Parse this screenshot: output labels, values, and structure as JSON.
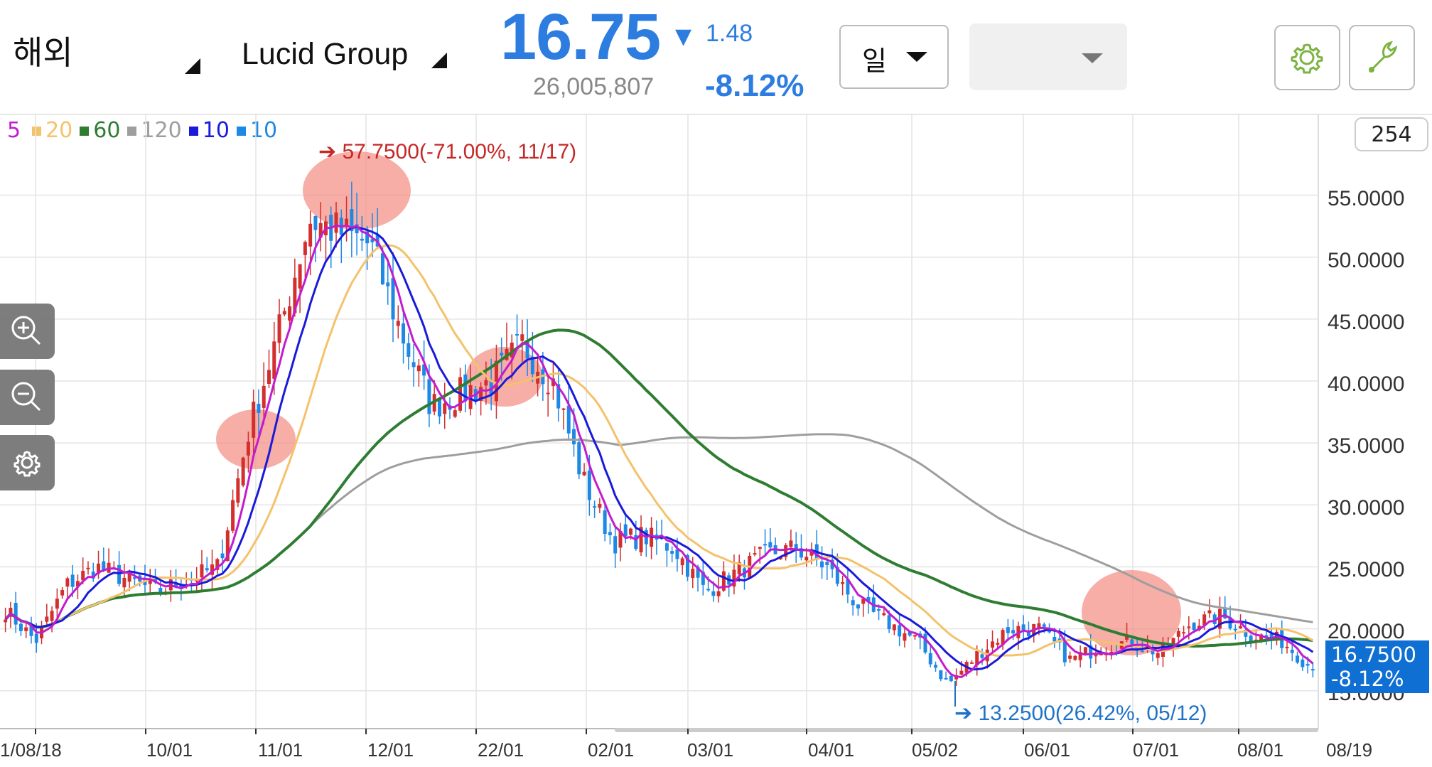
{
  "header": {
    "market": "해외",
    "stock_name": "Lucid Group",
    "price": "16.75",
    "change_arrow": "▼",
    "change": "1.48",
    "volume": "26,005,807",
    "change_pct": "-8.12%",
    "period": "일",
    "bar_count": "254"
  },
  "legend": [
    {
      "label": "5",
      "color": "#c21ccf"
    },
    {
      "label": "20",
      "color": "#f4c26b"
    },
    {
      "label": "60",
      "color": "#2e7d32"
    },
    {
      "label": "120",
      "color": "#9e9e9e"
    },
    {
      "label": "10",
      "color": "#1a1adb"
    },
    {
      "label": "10",
      "color": "#1e88e5"
    }
  ],
  "annotations": {
    "high": "57.7500(-71.00%, 11/17)",
    "low": "13.2500(26.42%, 05/12)",
    "current_price": "16.7500",
    "current_pct": "-8.12%"
  },
  "colors": {
    "up": "#d32f2f",
    "down": "#1e88e5",
    "accent": "#2d7de0",
    "highlight": "#f28b82"
  },
  "icons": [
    "zoom-in-icon",
    "zoom-out-icon",
    "gear-icon",
    "wrench-icon"
  ],
  "chart_data": {
    "type": "candlestick",
    "x_ticks": [
      "1/08/18",
      "10/01",
      "11/01",
      "12/01",
      "22/01",
      "02/01",
      "03/01",
      "04/01",
      "05/02",
      "06/01",
      "07/01",
      "08/01",
      "08/19"
    ],
    "y_ticks": [
      "55.0000",
      "50.0000",
      "45.0000",
      "40.0000",
      "35.0000",
      "30.0000",
      "25.0000",
      "20.0000",
      "15.0000"
    ],
    "ylim": [
      13,
      60
    ],
    "close_path": [
      [
        "1/08/18",
        21.5
      ],
      [
        "",
        19.0
      ],
      [
        "",
        23.5
      ],
      [
        "",
        25.0
      ],
      [
        "10/01",
        24.0
      ],
      [
        "",
        23.0
      ],
      [
        "",
        24.0
      ],
      [
        "",
        25.0
      ],
      [
        "11/01",
        36.0
      ],
      [
        "",
        44.0
      ],
      [
        "",
        53.0
      ],
      [
        "",
        52.0
      ],
      [
        "12/01",
        51.0
      ],
      [
        "",
        44.0
      ],
      [
        "",
        38.0
      ],
      [
        "",
        39.0
      ],
      [
        "22/01",
        40.0
      ],
      [
        "",
        43.0
      ],
      [
        "",
        40.0
      ],
      [
        "",
        32.0
      ],
      [
        "02/01",
        27.0
      ],
      [
        "",
        27.5
      ],
      [
        "",
        26.5
      ],
      [
        "",
        23.0
      ],
      [
        "03/01",
        24.5
      ],
      [
        "",
        26.0
      ],
      [
        "",
        26.5
      ],
      [
        "",
        25.0
      ],
      [
        "04/01",
        22.0
      ],
      [
        "",
        20.5
      ],
      [
        "",
        19.0
      ],
      [
        "05/02",
        15.5
      ],
      [
        "",
        18.0
      ],
      [
        "",
        20.0
      ],
      [
        "",
        20.0
      ],
      [
        "06/01",
        17.5
      ],
      [
        "",
        18.5
      ],
      [
        "",
        19.0
      ],
      [
        "07/01",
        18.0
      ],
      [
        "",
        20.5
      ],
      [
        "",
        21.0
      ],
      [
        "08/01",
        19.5
      ],
      [
        "",
        19.0
      ],
      [
        "08/19",
        16.75
      ]
    ],
    "high": 57.75,
    "low": 13.25,
    "last": 16.75
  }
}
